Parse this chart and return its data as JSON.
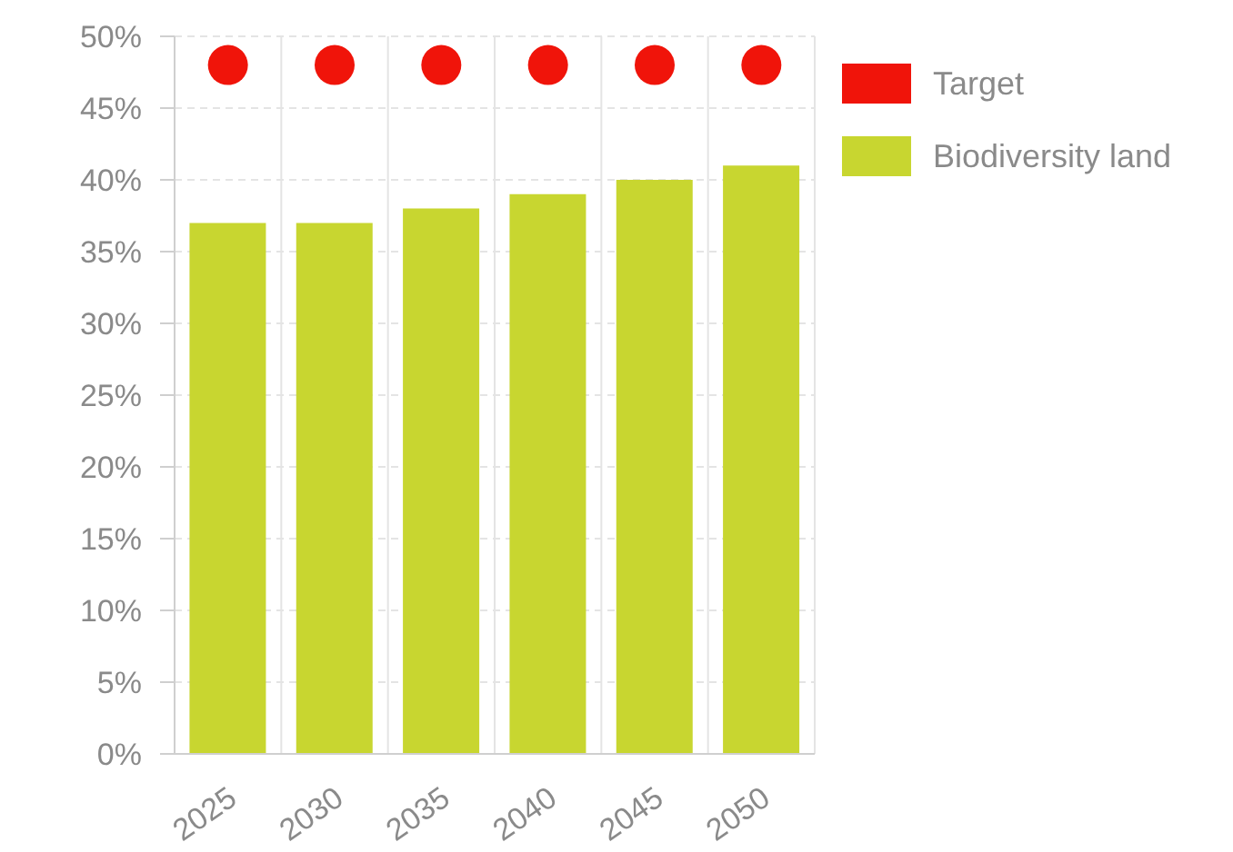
{
  "chart_data": {
    "type": "bar",
    "categories": [
      "2025",
      "2030",
      "2035",
      "2040",
      "2045",
      "2050"
    ],
    "series": [
      {
        "name": "Target",
        "type": "scatter",
        "color": "#f0140a",
        "values": [
          48,
          48,
          48,
          48,
          48,
          48
        ]
      },
      {
        "name": "Biodiversity land",
        "color": "#c8d630",
        "values": [
          37,
          37,
          38,
          39,
          40,
          41
        ]
      }
    ],
    "ylim": [
      0,
      50
    ],
    "yticks": [
      {
        "value": 0,
        "label": "0%"
      },
      {
        "value": 5,
        "label": "5%"
      },
      {
        "value": 10,
        "label": "10%"
      },
      {
        "value": 15,
        "label": "15%"
      },
      {
        "value": 20,
        "label": "20%"
      },
      {
        "value": 25,
        "label": "25%"
      },
      {
        "value": 30,
        "label": "30%"
      },
      {
        "value": 35,
        "label": "35%"
      },
      {
        "value": 40,
        "label": "40%"
      },
      {
        "value": 45,
        "label": "45%"
      },
      {
        "value": 50,
        "label": "50%"
      }
    ],
    "grid": true,
    "legend": "top right",
    "marker": "circle"
  }
}
